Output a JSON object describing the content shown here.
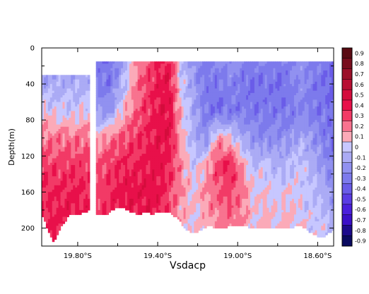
{
  "chart_data": {
    "type": "heatmap",
    "title": "Vsdacp",
    "ylabel": "Depth(m)",
    "xlabel": "",
    "x_range_lat": [
      -19.98,
      -18.52
    ],
    "ylim": [
      0,
      220
    ],
    "y_inverted": true,
    "x_ticks": [
      {
        "lat": -19.8,
        "label": "19.80°S"
      },
      {
        "lat": -19.4,
        "label": "19.40°S"
      },
      {
        "lat": -19.0,
        "label": "19.00°S"
      },
      {
        "lat": -18.6,
        "label": "18.60°S"
      }
    ],
    "y_ticks": [
      0,
      40,
      80,
      120,
      160,
      200
    ],
    "colorbar": {
      "levels": [
        0.9,
        0.8,
        0.7,
        0.6,
        0.5,
        0.4,
        0.3,
        0.2,
        0.1,
        0,
        -0.1,
        -0.2,
        -0.3,
        -0.4,
        -0.5,
        -0.6,
        -0.7,
        -0.8,
        -0.9
      ],
      "colors": [
        "#5a0a12",
        "#780d1c",
        "#9b0f28",
        "#b80e32",
        "#d40c3c",
        "#e8104a",
        "#f23a66",
        "#f8738f",
        "#fbaab8",
        "#c7c7ff",
        "#ababf5",
        "#9191f0",
        "#7d7aec",
        "#6a5ce8",
        "#5a3ce4",
        "#4a1fdc",
        "#3a0fc8",
        "#1c0a8c",
        "#0a0a60"
      ]
    },
    "gap_lat": [
      -19.74,
      -19.71
    ],
    "data_top_depth": [
      {
        "lat_range": [
          -19.98,
          -19.74
        ],
        "depth": 30
      },
      {
        "lat_range": [
          -19.71,
          -18.52
        ],
        "depth": 15
      }
    ],
    "depth_profile_lat": [
      -19.98,
      -19.95,
      -19.92,
      -19.88,
      -19.84,
      -19.8,
      -19.76,
      -19.74,
      -19.71,
      -19.66,
      -19.62,
      -19.58,
      -19.54,
      -19.5,
      -19.46,
      -19.42,
      -19.38,
      -19.34,
      -19.3,
      -19.26,
      -19.22,
      -19.18,
      -19.14,
      -19.1,
      -19.06,
      -19.02,
      -18.98,
      -18.94,
      -18.9,
      -18.86,
      -18.82,
      -18.78,
      -18.74,
      -18.7,
      -18.66,
      -18.62,
      -18.58,
      -18.55,
      -18.52
    ],
    "bottom_depth": [
      183,
      200,
      215,
      195,
      185,
      183,
      182,
      178,
      183,
      185,
      178,
      175,
      180,
      183,
      182,
      183,
      180,
      182,
      188,
      200,
      205,
      200,
      196,
      200,
      198,
      196,
      195,
      198,
      200,
      198,
      200,
      198,
      200,
      195,
      200,
      205,
      210,
      205,
      200
    ],
    "value_lat": [
      -19.98,
      -19.9,
      -19.82,
      -19.74,
      -19.7,
      -19.64,
      -19.58,
      -19.52,
      -19.46,
      -19.4,
      -19.34,
      -19.28,
      -19.22,
      -19.16,
      -19.1,
      -19.04,
      -18.98,
      -18.92,
      -18.86,
      -18.8,
      -18.74,
      -18.68,
      -18.62,
      -18.56,
      -18.52
    ],
    "value_depth": [
      15,
      40,
      70,
      100,
      130,
      160,
      200,
      220
    ],
    "values": [
      [
        -0.15,
        -0.15,
        -0.15,
        -0.15,
        -0.3,
        -0.35,
        -0.15,
        0.1,
        0.25,
        0.35,
        0.38,
        -0.05,
        -0.2,
        -0.3,
        -0.25,
        -0.2,
        -0.25,
        -0.3,
        -0.25,
        -0.3,
        -0.25,
        -0.2,
        -0.25,
        -0.3,
        -0.35
      ],
      [
        -0.1,
        -0.1,
        -0.1,
        -0.1,
        -0.25,
        -0.3,
        -0.1,
        0.15,
        0.3,
        0.38,
        0.4,
        0.0,
        -0.15,
        -0.3,
        -0.3,
        -0.25,
        -0.3,
        -0.35,
        -0.3,
        -0.35,
        -0.3,
        -0.2,
        -0.3,
        -0.35,
        -0.4
      ],
      [
        0.05,
        0.0,
        0.0,
        0.05,
        -0.2,
        -0.2,
        0.05,
        0.2,
        0.32,
        0.38,
        0.42,
        0.05,
        -0.1,
        -0.3,
        -0.35,
        -0.3,
        -0.3,
        -0.3,
        -0.3,
        -0.3,
        -0.3,
        -0.25,
        -0.3,
        -0.3,
        -0.35
      ],
      [
        0.2,
        0.2,
        0.2,
        0.2,
        0.1,
        0.2,
        0.25,
        0.3,
        0.35,
        0.4,
        0.42,
        0.1,
        -0.1,
        -0.2,
        0.15,
        0.05,
        -0.1,
        -0.2,
        -0.25,
        -0.2,
        -0.2,
        -0.1,
        -0.2,
        -0.3,
        -0.35
      ],
      [
        0.3,
        0.3,
        0.32,
        0.3,
        0.25,
        0.3,
        0.35,
        0.35,
        0.38,
        0.4,
        0.35,
        0.15,
        0.0,
        0.1,
        0.3,
        0.38,
        0.15,
        -0.05,
        0.0,
        -0.1,
        -0.05,
        0.0,
        -0.1,
        -0.2,
        -0.3
      ],
      [
        0.35,
        0.35,
        0.38,
        0.35,
        0.3,
        0.35,
        0.4,
        0.4,
        0.42,
        0.4,
        0.3,
        0.15,
        0.05,
        0.15,
        0.25,
        0.3,
        0.2,
        0.05,
        0.05,
        0.0,
        0.05,
        0.0,
        -0.05,
        -0.1,
        -0.2
      ],
      [
        0.35,
        0.38,
        0.4,
        0.35,
        0.3,
        0.35,
        0.38,
        0.38,
        0.4,
        0.35,
        0.25,
        0.1,
        0.05,
        0.1,
        0.15,
        0.2,
        0.15,
        0.05,
        0.1,
        0.05,
        0.1,
        0.05,
        0.0,
        0.0,
        -0.1
      ],
      [
        0.35,
        0.38,
        0.4,
        0.35,
        0.3,
        0.35,
        0.38,
        0.38,
        0.4,
        0.35,
        0.25,
        0.1,
        0.05,
        0.1,
        0.15,
        0.2,
        0.15,
        0.05,
        0.1,
        0.05,
        0.1,
        0.05,
        0.0,
        0.0,
        -0.1
      ]
    ]
  }
}
